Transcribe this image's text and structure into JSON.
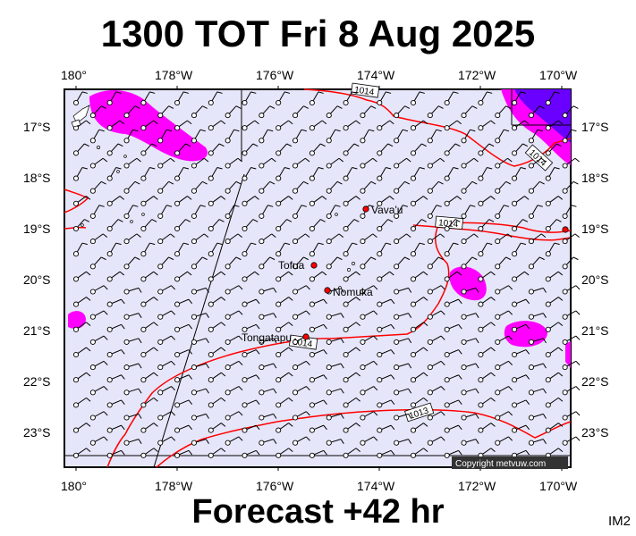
{
  "title": "1300 TOT Fri 8 Aug 2025",
  "footer": "Forecast +42 hr",
  "corner_code": "IM2",
  "copyright": "Copyright metvuw.com",
  "map": {
    "lon_ticks": [
      "180°",
      "178°W",
      "176°W",
      "174°W",
      "172°W",
      "170°W"
    ],
    "lat_ticks": [
      "17°S",
      "18°S",
      "19°S",
      "20°S",
      "21°S",
      "22°S",
      "23°S"
    ],
    "places": [
      {
        "name": "Vava'u"
      },
      {
        "name": "Tofua"
      },
      {
        "name": "Nomuka"
      },
      {
        "name": "Tongatapu"
      }
    ],
    "isobar_labels": [
      "1014",
      "1014",
      "1014",
      "1014",
      "1013"
    ],
    "colors": {
      "ocean": "#e6e6fa",
      "isobar": "#ff0000",
      "precip_light": "#ff00ff",
      "precip_heavy": "#6a00ff",
      "place_dot": "#ff0000"
    }
  }
}
